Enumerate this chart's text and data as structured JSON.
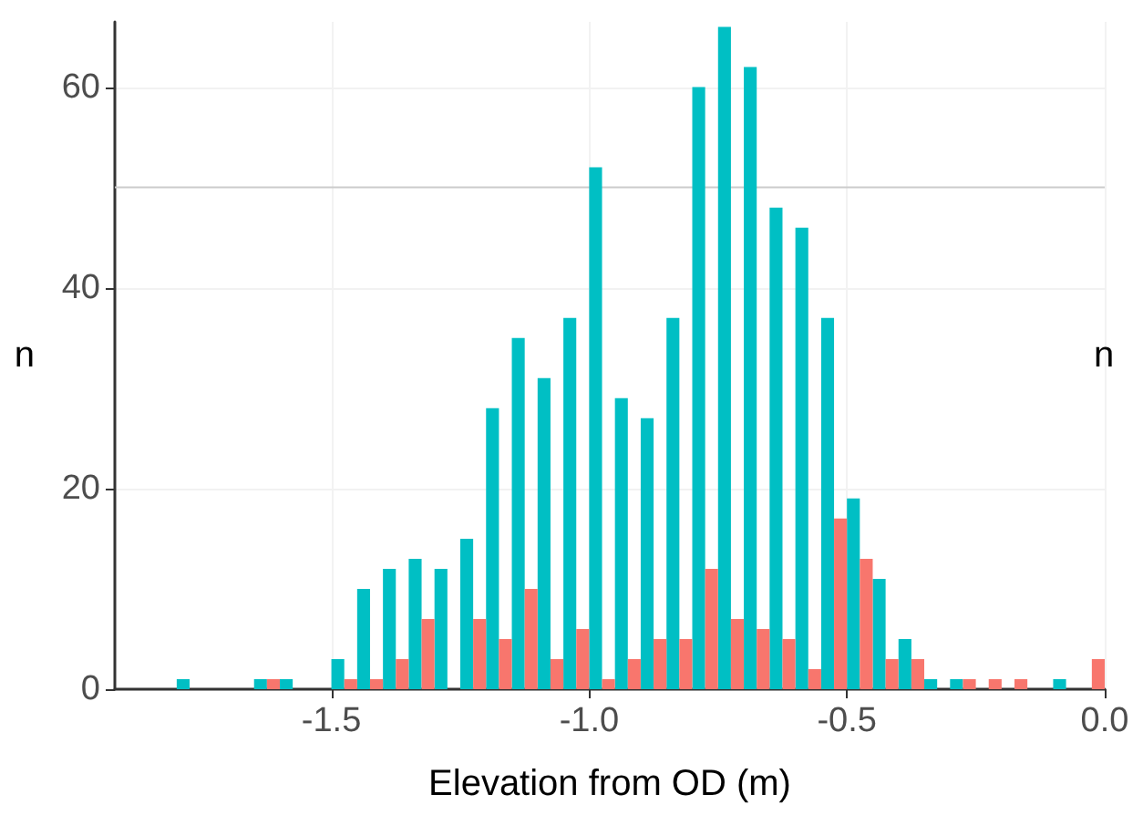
{
  "chart_data": {
    "type": "histogram",
    "xlabel": "Elevation from OD (m)",
    "ylabel": "n",
    "y2label": "n",
    "bins": [
      -1.8,
      -1.75,
      -1.7,
      -1.65,
      -1.6,
      -1.55,
      -1.5,
      -1.45,
      -1.4,
      -1.35,
      -1.3,
      -1.25,
      -1.2,
      -1.15,
      -1.1,
      -1.05,
      -1.0,
      -0.95,
      -0.9,
      -0.85,
      -0.8,
      -0.75,
      -0.7,
      -0.65,
      -0.6,
      -0.55,
      -0.5,
      -0.45,
      -0.4,
      -0.35,
      -0.3,
      -0.25,
      -0.2,
      -0.15,
      -0.1,
      -0.05,
      0.0
    ],
    "series": [
      {
        "color": "#00bfc4",
        "values": [
          1,
          0,
          0,
          1,
          1,
          0,
          3,
          10,
          12,
          13,
          12,
          15,
          28,
          35,
          31,
          37,
          52,
          29,
          27,
          37,
          60,
          66,
          62,
          48,
          46,
          37,
          19,
          11,
          5,
          1,
          1,
          0,
          0,
          0,
          1,
          0
        ]
      },
      {
        "color": "#f8766d",
        "values": [
          0,
          0,
          0,
          1,
          0,
          0,
          1,
          1,
          3,
          7,
          0,
          7,
          5,
          10,
          3,
          6,
          1,
          3,
          5,
          5,
          12,
          7,
          6,
          5,
          2,
          17,
          13,
          3,
          3,
          0,
          1,
          1,
          1,
          0,
          0,
          3
        ]
      }
    ],
    "xlim": [
      -1.92,
      0.0
    ],
    "xticks": [
      {
        "value": -1.5,
        "label": "-1.5"
      },
      {
        "value": -1.0,
        "label": "-1.0"
      },
      {
        "value": -0.5,
        "label": "-0.5"
      },
      {
        "value": 0.0,
        "label": "0.0"
      }
    ],
    "ylim": [
      0,
      66.5
    ],
    "yticks": [
      0,
      20,
      40,
      60
    ],
    "ref_lines": [
      {
        "axis": "y",
        "value": 50,
        "color": "#cccccc"
      }
    ],
    "grid": true
  }
}
